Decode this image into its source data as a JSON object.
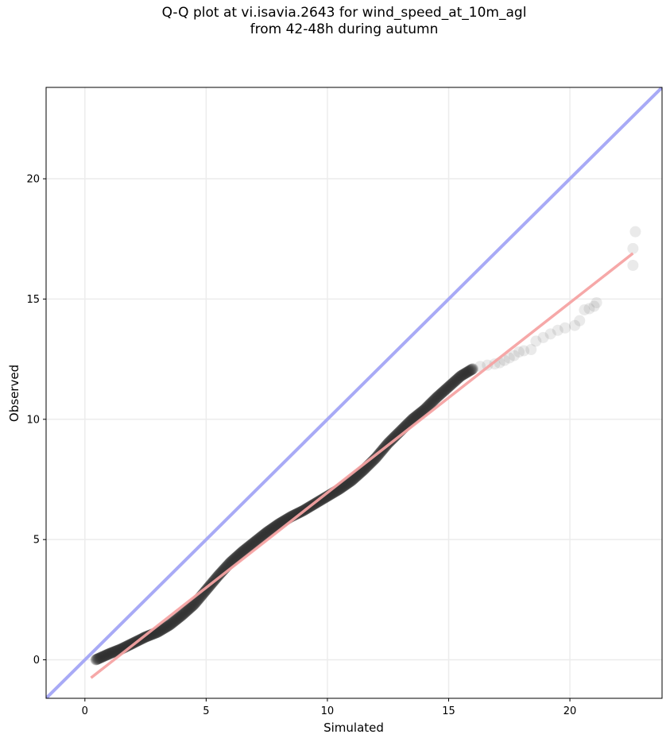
{
  "chart_data": {
    "type": "scatter",
    "title_line1": "Q-Q plot at vi.isavia.2643 for wind_speed_at_10m_agl",
    "title_line2": "from 42-48h during autumn",
    "xlabel": "Simulated",
    "ylabel": "Observed",
    "xlim": [
      -1.6,
      23.8
    ],
    "ylim": [
      -1.6,
      23.8
    ],
    "xticks": [
      0,
      5,
      10,
      15,
      20
    ],
    "yticks": [
      0,
      5,
      10,
      15,
      20
    ],
    "grid": true,
    "reference_line": {
      "slope": 1,
      "intercept": 0,
      "color": "#a8aaf6"
    },
    "fit_line": {
      "x": [
        0.25,
        22.6
      ],
      "y": [
        -0.75,
        16.9
      ],
      "color": "#f5a3a3"
    },
    "points_color": "#303030",
    "curve": [
      [
        0.45,
        0.0
      ],
      [
        1.0,
        0.25
      ],
      [
        1.5,
        0.45
      ],
      [
        2.0,
        0.7
      ],
      [
        2.5,
        0.95
      ],
      [
        3.0,
        1.15
      ],
      [
        3.5,
        1.45
      ],
      [
        4.0,
        1.85
      ],
      [
        4.5,
        2.3
      ],
      [
        5.0,
        2.9
      ],
      [
        5.5,
        3.5
      ],
      [
        6.0,
        4.05
      ],
      [
        6.5,
        4.5
      ],
      [
        7.0,
        4.9
      ],
      [
        7.5,
        5.3
      ],
      [
        8.0,
        5.65
      ],
      [
        8.5,
        5.95
      ],
      [
        9.0,
        6.2
      ],
      [
        9.5,
        6.5
      ],
      [
        10.0,
        6.8
      ],
      [
        10.5,
        7.1
      ],
      [
        11.0,
        7.45
      ],
      [
        11.5,
        7.9
      ],
      [
        12.0,
        8.4
      ],
      [
        12.5,
        9.0
      ],
      [
        13.0,
        9.5
      ],
      [
        13.5,
        10.0
      ],
      [
        14.0,
        10.4
      ],
      [
        14.5,
        10.9
      ],
      [
        15.0,
        11.35
      ],
      [
        15.5,
        11.8
      ],
      [
        16.0,
        12.1
      ]
    ],
    "tail_points": [
      [
        16.3,
        12.2
      ],
      [
        16.6,
        12.25
      ],
      [
        16.9,
        12.3
      ],
      [
        17.1,
        12.35
      ],
      [
        17.3,
        12.45
      ],
      [
        17.5,
        12.55
      ],
      [
        17.7,
        12.65
      ],
      [
        17.9,
        12.8
      ],
      [
        18.1,
        12.85
      ],
      [
        18.4,
        12.9
      ],
      [
        18.6,
        13.25
      ],
      [
        18.9,
        13.4
      ],
      [
        19.2,
        13.55
      ],
      [
        19.5,
        13.7
      ],
      [
        19.8,
        13.8
      ],
      [
        20.2,
        13.9
      ],
      [
        20.4,
        14.1
      ],
      [
        20.6,
        14.55
      ],
      [
        20.8,
        14.6
      ],
      [
        21.0,
        14.7
      ],
      [
        21.1,
        14.85
      ],
      [
        22.6,
        16.4
      ],
      [
        22.6,
        17.1
      ],
      [
        22.7,
        17.8
      ]
    ]
  }
}
